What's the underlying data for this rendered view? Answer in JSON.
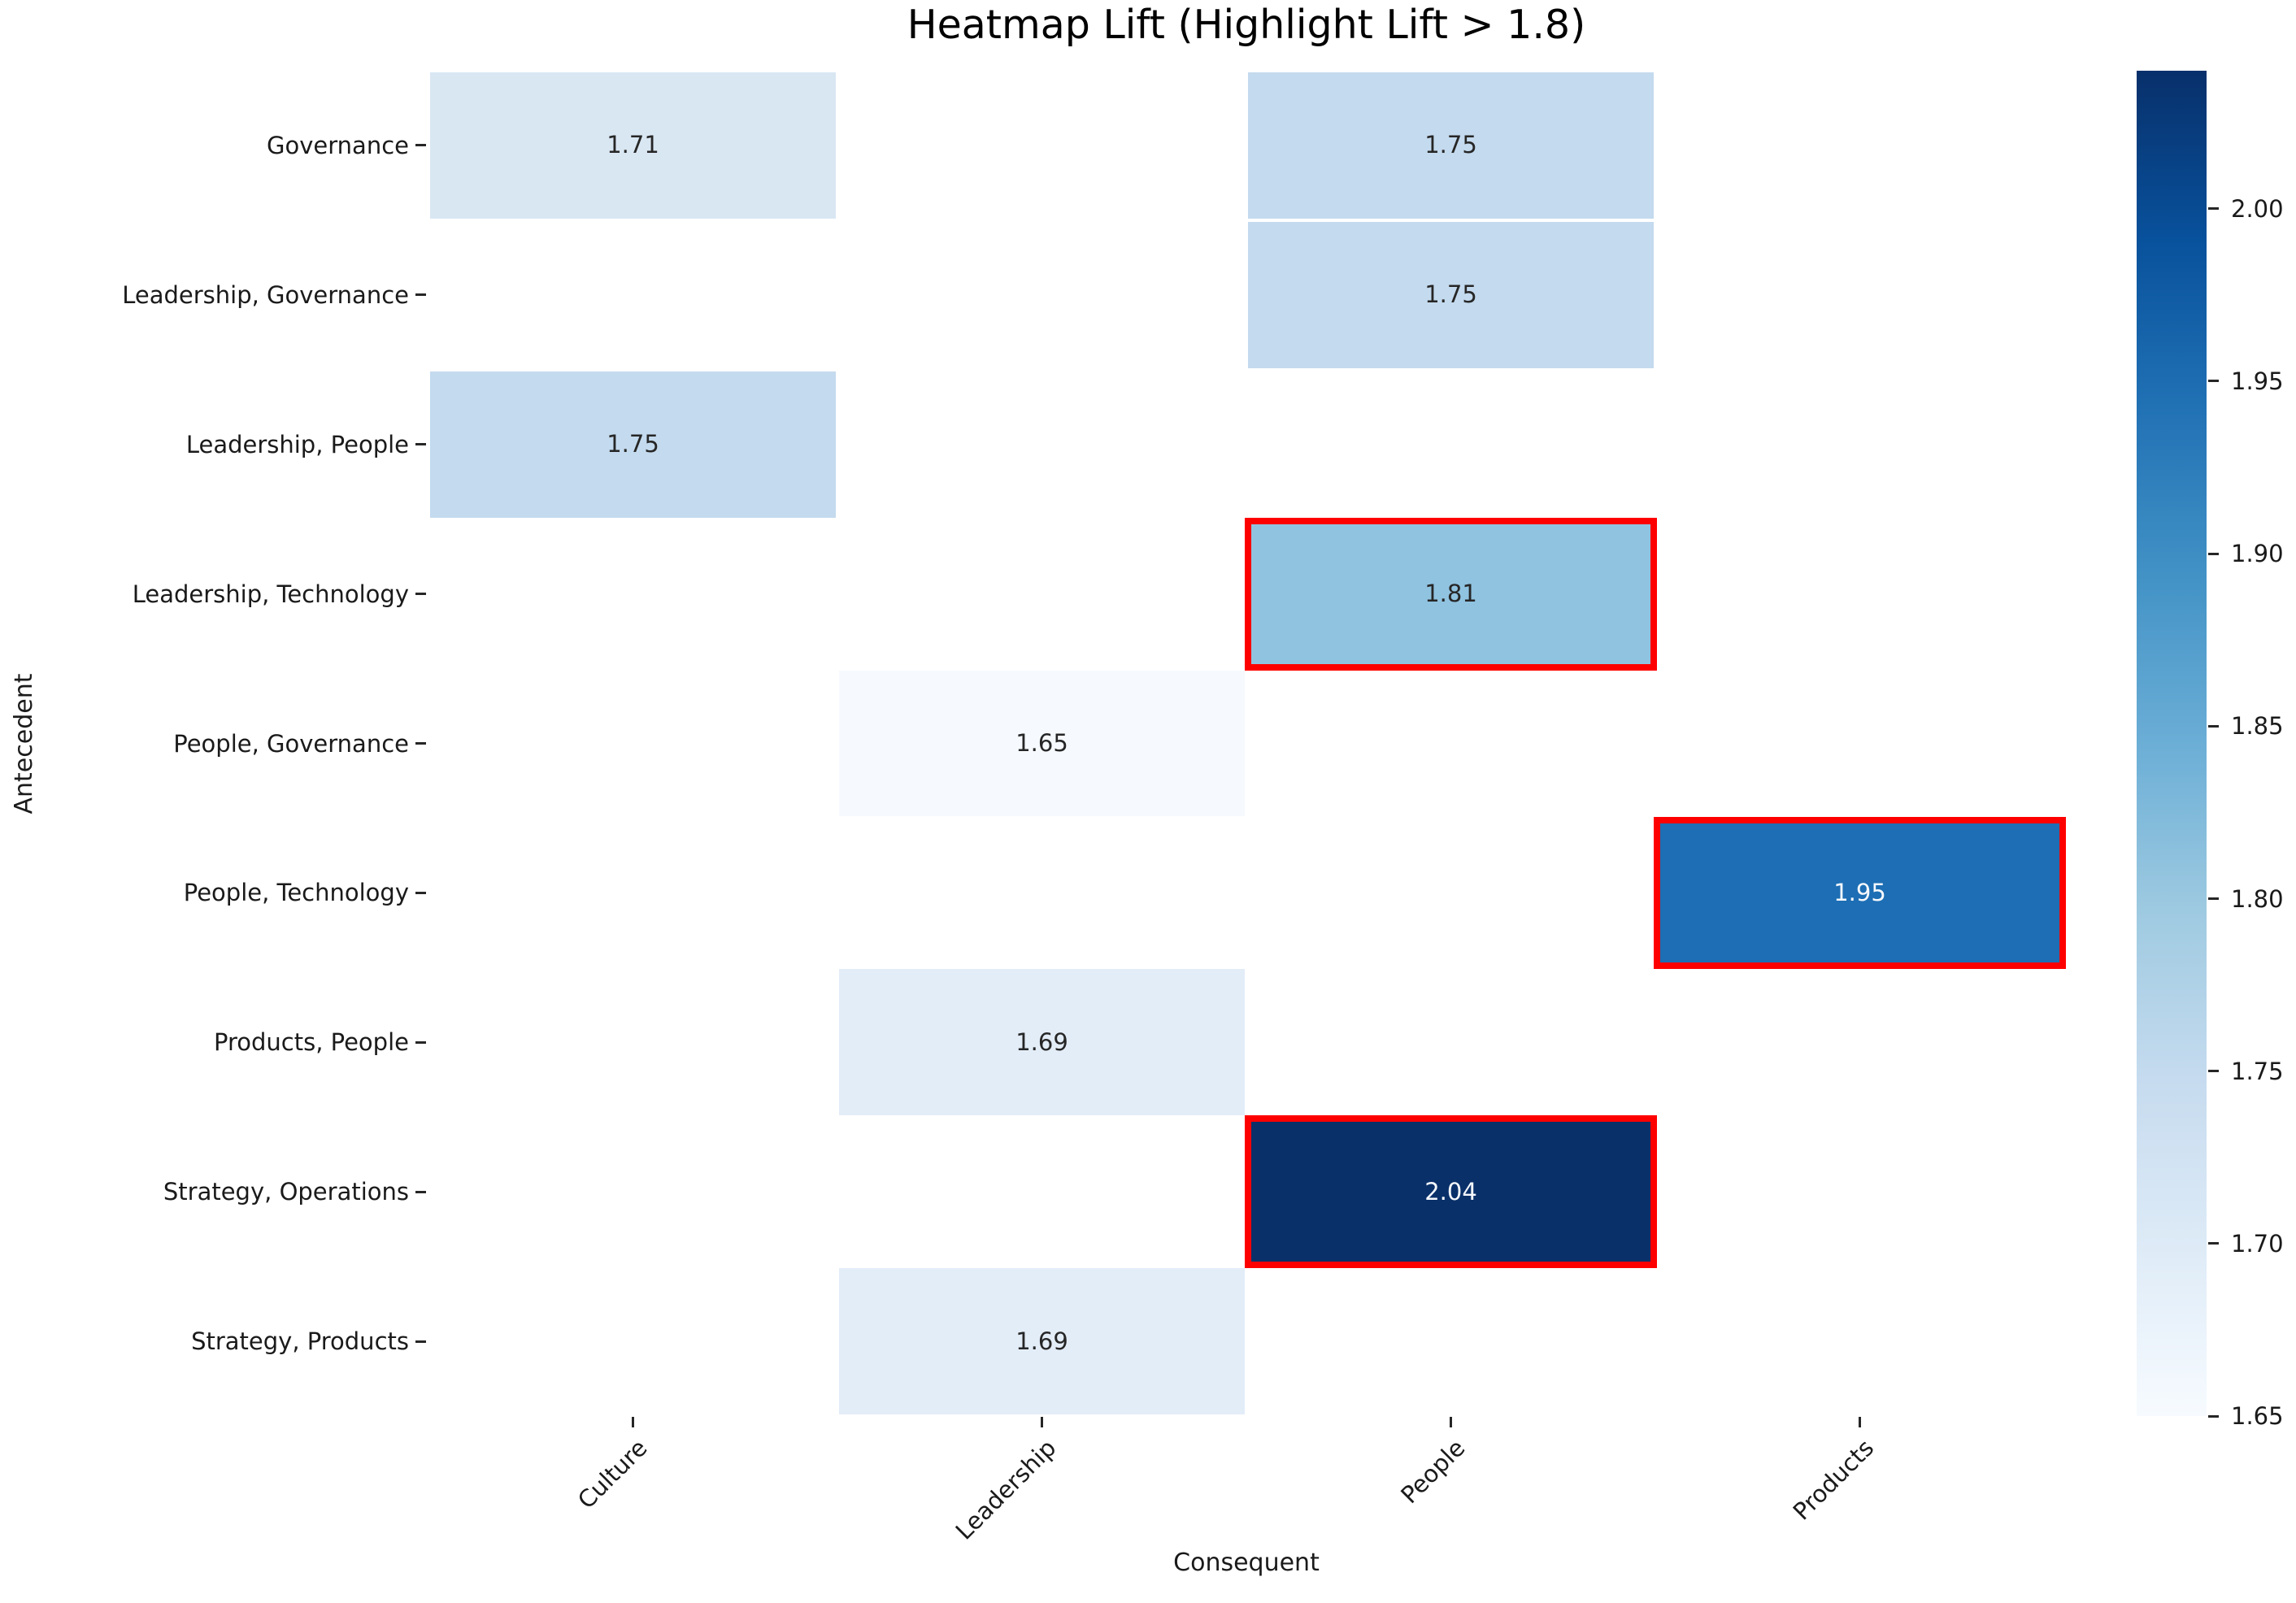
{
  "chart_data": {
    "type": "heatmap",
    "title": "Heatmap Lift (Highlight Lift > 1.8)",
    "xlabel": "Consequent",
    "ylabel": "Antecedent",
    "x_categories": [
      "Culture",
      "Leadership",
      "People",
      "Products"
    ],
    "y_categories": [
      "Governance",
      "Leadership, Governance",
      "Leadership, People",
      "Leadership, Technology",
      "People, Governance",
      "People, Technology",
      "Products, People",
      "Strategy, Operations",
      "Strategy, Products"
    ],
    "highlight_rule": "Lift > 1.8",
    "highlight_border_color": "#ff0000",
    "cells": [
      {
        "antecedent": "Governance",
        "consequent": "Culture",
        "row": 0,
        "col": 0,
        "value": 1.71,
        "label": "1.71",
        "color": "#d9e7f3",
        "text_color": "#262626",
        "highlighted": false
      },
      {
        "antecedent": "Governance",
        "consequent": "People",
        "row": 0,
        "col": 2,
        "value": 1.75,
        "label": "1.75",
        "color": "#c4daee",
        "text_color": "#262626",
        "highlighted": false
      },
      {
        "antecedent": "Leadership, Governance",
        "consequent": "People",
        "row": 1,
        "col": 2,
        "value": 1.75,
        "label": "1.75",
        "color": "#c4daee",
        "text_color": "#262626",
        "highlighted": false
      },
      {
        "antecedent": "Leadership, People",
        "consequent": "Culture",
        "row": 2,
        "col": 0,
        "value": 1.75,
        "label": "1.75",
        "color": "#c4daee",
        "text_color": "#262626",
        "highlighted": false
      },
      {
        "antecedent": "Leadership, Technology",
        "consequent": "People",
        "row": 3,
        "col": 2,
        "value": 1.81,
        "label": "1.81",
        "color": "#90c3e0",
        "text_color": "#262626",
        "highlighted": true
      },
      {
        "antecedent": "People, Governance",
        "consequent": "Leadership",
        "row": 4,
        "col": 1,
        "value": 1.65,
        "label": "1.65",
        "color": "#f6fafe",
        "text_color": "#262626",
        "highlighted": false
      },
      {
        "antecedent": "People, Technology",
        "consequent": "Products",
        "row": 5,
        "col": 3,
        "value": 1.95,
        "label": "1.95",
        "color": "#1d6eb4",
        "text_color": "#f5f8fc",
        "highlighted": true
      },
      {
        "antecedent": "Products, People",
        "consequent": "Leadership",
        "row": 6,
        "col": 1,
        "value": 1.69,
        "label": "1.69",
        "color": "#e3edf8",
        "text_color": "#262626",
        "highlighted": false
      },
      {
        "antecedent": "Strategy, Operations",
        "consequent": "People",
        "row": 7,
        "col": 2,
        "value": 2.04,
        "label": "2.04",
        "color": "#0a3069",
        "text_color": "#f5f8fc",
        "highlighted": true
      },
      {
        "antecedent": "Strategy, Products",
        "consequent": "Leadership",
        "row": 8,
        "col": 1,
        "value": 1.69,
        "label": "1.69",
        "color": "#e3edf8",
        "text_color": "#262626",
        "highlighted": false
      }
    ],
    "colorbar": {
      "vmin": 1.65,
      "vmax": 2.04,
      "tick_labels": [
        "2.00",
        "1.95",
        "1.90",
        "1.85",
        "1.80",
        "1.75",
        "1.70",
        "1.65"
      ],
      "tick_values": [
        2.0,
        1.95,
        1.9,
        1.85,
        1.8,
        1.75,
        1.7,
        1.65
      ],
      "gradient_stops": [
        "#08306b",
        "#08519c",
        "#2171b5",
        "#4292c6",
        "#6baed6",
        "#9ecae1",
        "#c6dbef",
        "#deebf7",
        "#f7fbff"
      ]
    }
  }
}
